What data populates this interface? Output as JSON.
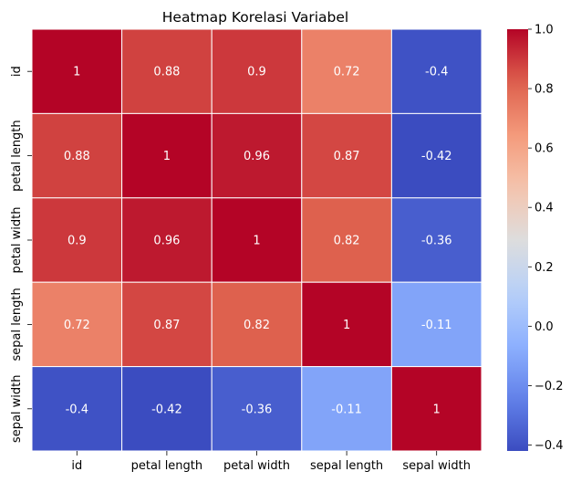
{
  "chart_data": {
    "type": "heatmap",
    "title": "Heatmap Korelasi Variabel",
    "row_labels": [
      "id",
      "petal length",
      "petal width",
      "sepal length",
      "sepal width"
    ],
    "col_labels": [
      "id",
      "petal length",
      "petal width",
      "sepal length",
      "sepal width"
    ],
    "values": [
      [
        1,
        0.88,
        0.9,
        0.72,
        -0.4
      ],
      [
        0.88,
        1,
        0.96,
        0.87,
        -0.42
      ],
      [
        0.9,
        0.96,
        1,
        0.82,
        -0.36
      ],
      [
        0.72,
        0.87,
        0.82,
        1,
        -0.11
      ],
      [
        -0.4,
        -0.42,
        -0.36,
        -0.11,
        1
      ]
    ],
    "value_labels": [
      [
        "1",
        "0.88",
        "0.9",
        "0.72",
        "-0.4"
      ],
      [
        "0.88",
        "1",
        "0.96",
        "0.87",
        "-0.42"
      ],
      [
        "0.9",
        "0.96",
        "1",
        "0.82",
        "-0.36"
      ],
      [
        "0.72",
        "0.87",
        "0.82",
        "1",
        "-0.11"
      ],
      [
        "-0.4",
        "-0.42",
        "-0.36",
        "-0.11",
        "1"
      ]
    ],
    "colormap": "coolwarm",
    "vmin": -0.42,
    "vmax": 1,
    "colorbar_ticks": [
      1.0,
      0.8,
      0.6,
      0.4,
      0.2,
      0.0,
      -0.2,
      -0.4
    ],
    "colorbar_tick_labels": [
      "1.0",
      "0.8",
      "0.6",
      "0.4",
      "0.2",
      "0.0",
      "−0.2",
      "−0.4"
    ],
    "cell_border_color": "#ffffff",
    "annotation_color": "#ffffff"
  }
}
